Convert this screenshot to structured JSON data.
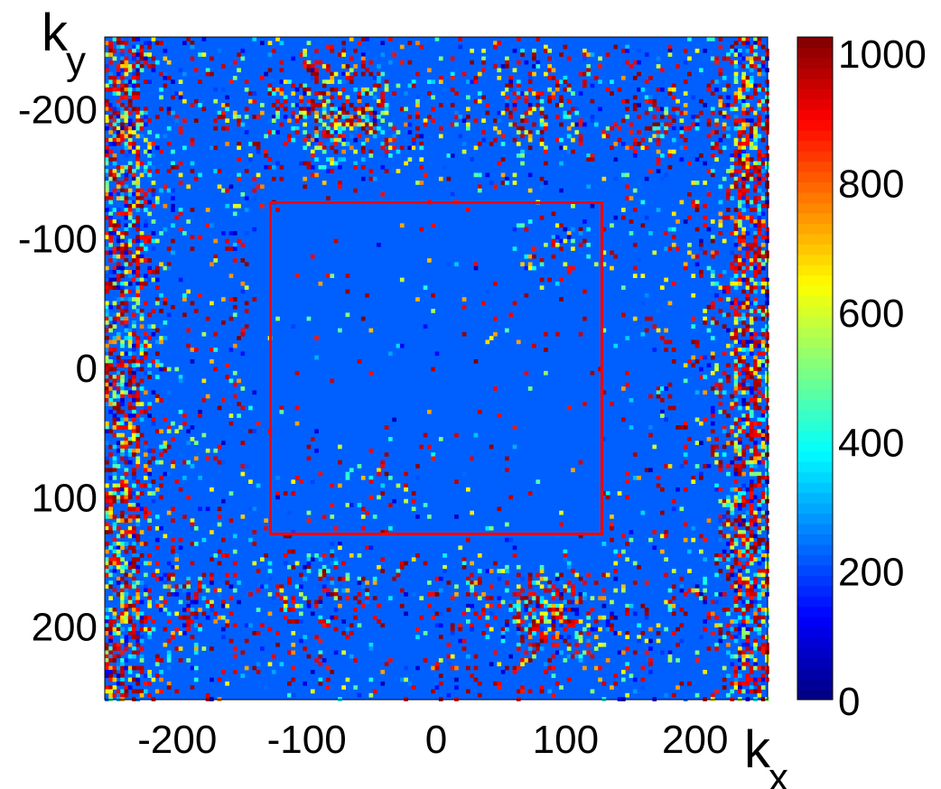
{
  "chart_data": {
    "type": "heatmap",
    "title": "",
    "xlabel": {
      "base": "k",
      "subscript": "x"
    },
    "ylabel": {
      "base": "k",
      "subscript": "y"
    },
    "xlim": [
      -256,
      256
    ],
    "ylim": [
      -256,
      256
    ],
    "y_axis_direction": "down",
    "x_ticks": [
      -200,
      -100,
      0,
      100,
      200
    ],
    "y_ticks": [
      -200,
      -100,
      0,
      100,
      200
    ],
    "x_tick_labels": [
      "-200",
      "-100",
      "0",
      "100",
      "200"
    ],
    "y_tick_labels": [
      "-200",
      "-100",
      "0",
      "100",
      "200"
    ],
    "colorbar": {
      "colormap": "jet",
      "range": [
        0,
        1024
      ],
      "ticks": [
        0,
        200,
        400,
        600,
        800,
        1000
      ],
      "tick_labels": [
        "0",
        "200",
        "400",
        "600",
        "800",
        "1000"
      ]
    },
    "background_value": 30,
    "hotspots": [
      {
        "center": [
          -80,
          -200
        ],
        "extent": [
          60,
          40
        ],
        "level": "high"
      },
      {
        "center": [
          80,
          190
        ],
        "extent": [
          60,
          35
        ],
        "level": "high"
      },
      {
        "center": [
          -100,
          170
        ],
        "extent": [
          50,
          40
        ],
        "level": "medium"
      },
      {
        "center": [
          70,
          -210
        ],
        "extent": [
          60,
          40
        ],
        "level": "medium"
      },
      {
        "center": [
          -60,
          90
        ],
        "extent": [
          45,
          30
        ],
        "level": "low"
      },
      {
        "center": [
          90,
          -90
        ],
        "extent": [
          40,
          30
        ],
        "level": "low"
      },
      {
        "center": [
          -190,
          180
        ],
        "extent": [
          40,
          30
        ],
        "level": "medium"
      },
      {
        "center": [
          180,
          -190
        ],
        "extent": [
          40,
          30
        ],
        "level": "medium"
      }
    ],
    "edge_bands": [
      {
        "x_range": [
          -256,
          -230
        ],
        "level": "high"
      },
      {
        "x_range": [
          230,
          256
        ],
        "level": "high"
      }
    ],
    "highlight_box": {
      "x_range": [
        -128,
        128
      ],
      "y_range": [
        -128,
        128
      ],
      "color": "#ff0000"
    },
    "grid": false,
    "legend": "none"
  }
}
